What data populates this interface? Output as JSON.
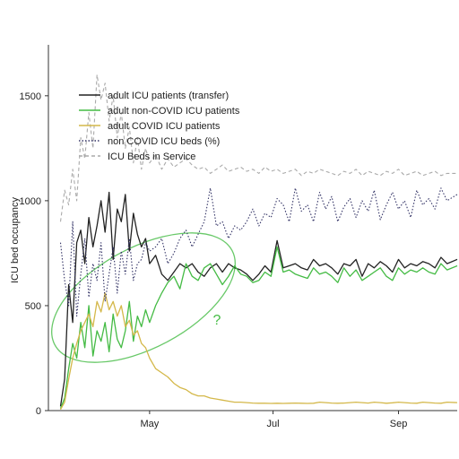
{
  "chart_data": {
    "type": "line",
    "title": "",
    "xlabel": "",
    "ylabel": "ICU bed occupancy",
    "xlim": [
      "2020-03-12",
      "2020-09-30"
    ],
    "ylim": [
      0,
      1700
    ],
    "y_ticks": [
      0,
      500,
      1000,
      1500
    ],
    "y_tick_labels": [
      "0",
      "500",
      "1000",
      "1500"
    ],
    "x_ticks": [
      "2020-05-01",
      "2020-07-01",
      "2020-09-01"
    ],
    "x_tick_labels": [
      "May",
      "Jul",
      "Sep"
    ],
    "legend_position": "top-left",
    "annotation": {
      "text": "?",
      "color": "#44bb44"
    },
    "series": [
      {
        "name": "adult ICU patients (transfer)",
        "color": "#222222",
        "style": "solid",
        "x": [
          "2020-03-18",
          "2020-03-20",
          "2020-03-22",
          "2020-03-24",
          "2020-03-26",
          "2020-03-28",
          "2020-03-30",
          "2020-04-01",
          "2020-04-03",
          "2020-04-05",
          "2020-04-07",
          "2020-04-09",
          "2020-04-11",
          "2020-04-13",
          "2020-04-15",
          "2020-04-17",
          "2020-04-19",
          "2020-04-21",
          "2020-04-23",
          "2020-04-25",
          "2020-04-27",
          "2020-04-29",
          "2020-05-01",
          "2020-05-04",
          "2020-05-07",
          "2020-05-10",
          "2020-05-13",
          "2020-05-16",
          "2020-05-19",
          "2020-05-22",
          "2020-05-25",
          "2020-05-28",
          "2020-05-31",
          "2020-06-03",
          "2020-06-06",
          "2020-06-09",
          "2020-06-12",
          "2020-06-15",
          "2020-06-18",
          "2020-06-21",
          "2020-06-24",
          "2020-06-27",
          "2020-06-30",
          "2020-07-03",
          "2020-07-06",
          "2020-07-09",
          "2020-07-12",
          "2020-07-15",
          "2020-07-18",
          "2020-07-21",
          "2020-07-24",
          "2020-07-27",
          "2020-07-30",
          "2020-08-02",
          "2020-08-05",
          "2020-08-08",
          "2020-08-11",
          "2020-08-14",
          "2020-08-17",
          "2020-08-20",
          "2020-08-23",
          "2020-08-26",
          "2020-08-29",
          "2020-09-01",
          "2020-09-04",
          "2020-09-07",
          "2020-09-10",
          "2020-09-13",
          "2020-09-16",
          "2020-09-19",
          "2020-09-22",
          "2020-09-25",
          "2020-09-30"
        ],
        "y": [
          20,
          150,
          600,
          420,
          800,
          860,
          700,
          920,
          780,
          880,
          1000,
          850,
          1040,
          720,
          960,
          900,
          1030,
          760,
          940,
          840,
          780,
          820,
          700,
          740,
          650,
          620,
          660,
          700,
          680,
          700,
          660,
          640,
          680,
          700,
          660,
          700,
          680,
          670,
          650,
          620,
          650,
          690,
          660,
          810,
          680,
          690,
          700,
          680,
          670,
          720,
          690,
          700,
          680,
          650,
          700,
          690,
          720,
          640,
          700,
          680,
          710,
          690,
          660,
          720,
          680,
          700,
          690,
          710,
          700,
          680,
          730,
          700,
          720
        ]
      },
      {
        "name": "adult non-COVID ICU patients",
        "color": "#44bb44",
        "style": "solid",
        "x": [
          "2020-03-18",
          "2020-03-20",
          "2020-03-22",
          "2020-03-24",
          "2020-03-26",
          "2020-03-28",
          "2020-03-30",
          "2020-04-01",
          "2020-04-03",
          "2020-04-05",
          "2020-04-07",
          "2020-04-09",
          "2020-04-11",
          "2020-04-13",
          "2020-04-15",
          "2020-04-17",
          "2020-04-19",
          "2020-04-21",
          "2020-04-23",
          "2020-04-25",
          "2020-04-27",
          "2020-04-29",
          "2020-05-01",
          "2020-05-04",
          "2020-05-07",
          "2020-05-10",
          "2020-05-13",
          "2020-05-16",
          "2020-05-19",
          "2020-05-22",
          "2020-05-25",
          "2020-05-28",
          "2020-05-31",
          "2020-06-03",
          "2020-06-06",
          "2020-06-09",
          "2020-06-12",
          "2020-06-15",
          "2020-06-18",
          "2020-06-21",
          "2020-06-24",
          "2020-06-27",
          "2020-06-30",
          "2020-07-03",
          "2020-07-06",
          "2020-07-09",
          "2020-07-12",
          "2020-07-15",
          "2020-07-18",
          "2020-07-21",
          "2020-07-24",
          "2020-07-27",
          "2020-07-30",
          "2020-08-02",
          "2020-08-05",
          "2020-08-08",
          "2020-08-11",
          "2020-08-14",
          "2020-08-17",
          "2020-08-20",
          "2020-08-23",
          "2020-08-26",
          "2020-08-29",
          "2020-09-01",
          "2020-09-04",
          "2020-09-07",
          "2020-09-10",
          "2020-09-13",
          "2020-09-16",
          "2020-09-19",
          "2020-09-22",
          "2020-09-25",
          "2020-09-30"
        ],
        "y": [
          10,
          60,
          200,
          320,
          250,
          420,
          300,
          500,
          260,
          380,
          330,
          420,
          280,
          460,
          340,
          300,
          380,
          520,
          330,
          450,
          400,
          480,
          420,
          500,
          560,
          610,
          640,
          580,
          700,
          640,
          620,
          680,
          700,
          650,
          600,
          640,
          690,
          650,
          640,
          610,
          620,
          660,
          640,
          780,
          660,
          670,
          650,
          640,
          630,
          680,
          650,
          660,
          640,
          610,
          680,
          640,
          670,
          620,
          640,
          660,
          680,
          640,
          620,
          680,
          650,
          670,
          660,
          680,
          660,
          650,
          700,
          670,
          690
        ]
      },
      {
        "name": "adult COVID ICU patients",
        "color": "#d4b84a",
        "style": "solid",
        "x": [
          "2020-03-18",
          "2020-03-20",
          "2020-03-22",
          "2020-03-24",
          "2020-03-26",
          "2020-03-28",
          "2020-03-30",
          "2020-04-01",
          "2020-04-03",
          "2020-04-05",
          "2020-04-07",
          "2020-04-09",
          "2020-04-11",
          "2020-04-13",
          "2020-04-15",
          "2020-04-17",
          "2020-04-19",
          "2020-04-21",
          "2020-04-23",
          "2020-04-25",
          "2020-04-27",
          "2020-04-29",
          "2020-05-01",
          "2020-05-04",
          "2020-05-07",
          "2020-05-10",
          "2020-05-13",
          "2020-05-16",
          "2020-05-19",
          "2020-05-22",
          "2020-05-25",
          "2020-05-28",
          "2020-05-31",
          "2020-06-03",
          "2020-06-06",
          "2020-06-09",
          "2020-06-12",
          "2020-06-15",
          "2020-06-18",
          "2020-06-21",
          "2020-06-24",
          "2020-06-27",
          "2020-06-30",
          "2020-07-03",
          "2020-07-06",
          "2020-07-09",
          "2020-07-12",
          "2020-07-15",
          "2020-07-18",
          "2020-07-21",
          "2020-07-24",
          "2020-07-27",
          "2020-07-30",
          "2020-08-02",
          "2020-08-05",
          "2020-08-08",
          "2020-08-11",
          "2020-08-14",
          "2020-08-17",
          "2020-08-20",
          "2020-08-23",
          "2020-08-26",
          "2020-08-29",
          "2020-09-01",
          "2020-09-04",
          "2020-09-07",
          "2020-09-10",
          "2020-09-13",
          "2020-09-16",
          "2020-09-19",
          "2020-09-22",
          "2020-09-25",
          "2020-09-30"
        ],
        "y": [
          5,
          40,
          150,
          250,
          320,
          380,
          420,
          460,
          400,
          520,
          470,
          560,
          480,
          520,
          450,
          500,
          400,
          430,
          360,
          380,
          320,
          300,
          250,
          200,
          180,
          160,
          130,
          110,
          100,
          80,
          70,
          70,
          60,
          55,
          50,
          45,
          40,
          40,
          38,
          36,
          35,
          35,
          34,
          35,
          34,
          35,
          36,
          35,
          34,
          35,
          40,
          38,
          36,
          35,
          36,
          38,
          40,
          38,
          36,
          40,
          38,
          35,
          37,
          40,
          38,
          36,
          35,
          40,
          38,
          36,
          35,
          40,
          38
        ]
      },
      {
        "name": "non COVID ICU beds (%)",
        "color": "#333366",
        "style": "dotted",
        "x": [
          "2020-03-18",
          "2020-03-20",
          "2020-03-22",
          "2020-03-24",
          "2020-03-26",
          "2020-03-28",
          "2020-03-30",
          "2020-04-01",
          "2020-04-03",
          "2020-04-05",
          "2020-04-07",
          "2020-04-09",
          "2020-04-11",
          "2020-04-13",
          "2020-04-15",
          "2020-04-17",
          "2020-04-19",
          "2020-04-21",
          "2020-04-23",
          "2020-04-25",
          "2020-04-27",
          "2020-04-29",
          "2020-05-01",
          "2020-05-04",
          "2020-05-07",
          "2020-05-10",
          "2020-05-13",
          "2020-05-16",
          "2020-05-19",
          "2020-05-22",
          "2020-05-25",
          "2020-05-28",
          "2020-05-31",
          "2020-06-03",
          "2020-06-06",
          "2020-06-09",
          "2020-06-12",
          "2020-06-15",
          "2020-06-18",
          "2020-06-21",
          "2020-06-24",
          "2020-06-27",
          "2020-06-30",
          "2020-07-03",
          "2020-07-06",
          "2020-07-09",
          "2020-07-12",
          "2020-07-15",
          "2020-07-18",
          "2020-07-21",
          "2020-07-24",
          "2020-07-27",
          "2020-07-30",
          "2020-08-02",
          "2020-08-05",
          "2020-08-08",
          "2020-08-11",
          "2020-08-14",
          "2020-08-17",
          "2020-08-20",
          "2020-08-23",
          "2020-08-26",
          "2020-08-29",
          "2020-09-01",
          "2020-09-04",
          "2020-09-07",
          "2020-09-10",
          "2020-09-13",
          "2020-09-16",
          "2020-09-19",
          "2020-09-22",
          "2020-09-25",
          "2020-09-30"
        ],
        "y": [
          800,
          620,
          500,
          900,
          450,
          650,
          820,
          540,
          700,
          620,
          800,
          520,
          650,
          780,
          560,
          760,
          650,
          820,
          620,
          700,
          720,
          800,
          760,
          780,
          820,
          700,
          750,
          820,
          860,
          780,
          840,
          900,
          1060,
          880,
          900,
          820,
          880,
          860,
          900,
          960,
          880,
          940,
          920,
          1010,
          980,
          900,
          1060,
          950,
          980,
          900,
          1040,
          960,
          1020,
          900,
          970,
          1010,
          920,
          1000,
          950,
          1050,
          910,
          980,
          1040,
          960,
          1000,
          920,
          1050,
          980,
          1010,
          960,
          1060,
          1000,
          1030
        ]
      },
      {
        "name": "ICU Beds in Service",
        "color": "#aaaaaa",
        "style": "dashed",
        "x": [
          "2020-03-18",
          "2020-03-20",
          "2020-03-22",
          "2020-03-24",
          "2020-03-26",
          "2020-03-28",
          "2020-03-30",
          "2020-04-01",
          "2020-04-03",
          "2020-04-05",
          "2020-04-07",
          "2020-04-09",
          "2020-04-11",
          "2020-04-13",
          "2020-04-15",
          "2020-04-17",
          "2020-04-19",
          "2020-04-21",
          "2020-04-23",
          "2020-04-25",
          "2020-04-27",
          "2020-04-29",
          "2020-05-01",
          "2020-05-04",
          "2020-05-07",
          "2020-05-10",
          "2020-05-13",
          "2020-05-16",
          "2020-05-19",
          "2020-05-22",
          "2020-05-25",
          "2020-05-28",
          "2020-05-31",
          "2020-06-03",
          "2020-06-06",
          "2020-06-09",
          "2020-06-12",
          "2020-06-15",
          "2020-06-18",
          "2020-06-21",
          "2020-06-24",
          "2020-06-27",
          "2020-06-30",
          "2020-07-03",
          "2020-07-06",
          "2020-07-09",
          "2020-07-12",
          "2020-07-15",
          "2020-07-18",
          "2020-07-21",
          "2020-07-24",
          "2020-07-27",
          "2020-07-30",
          "2020-08-02",
          "2020-08-05",
          "2020-08-08",
          "2020-08-11",
          "2020-08-14",
          "2020-08-17",
          "2020-08-20",
          "2020-08-23",
          "2020-08-26",
          "2020-08-29",
          "2020-09-01",
          "2020-09-04",
          "2020-09-07",
          "2020-09-10",
          "2020-09-13",
          "2020-09-16",
          "2020-09-19",
          "2020-09-22",
          "2020-09-25",
          "2020-09-30"
        ],
        "y": [
          900,
          1050,
          980,
          1150,
          1000,
          1300,
          1200,
          1420,
          1250,
          1600,
          1480,
          1560,
          1380,
          1500,
          1300,
          1420,
          1250,
          1350,
          1180,
          1300,
          1150,
          1250,
          1180,
          1220,
          1150,
          1200,
          1160,
          1180,
          1200,
          1170,
          1150,
          1160,
          1130,
          1150,
          1170,
          1140,
          1150,
          1160,
          1140,
          1150,
          1130,
          1160,
          1140,
          1150,
          1130,
          1140,
          1150,
          1120,
          1140,
          1130,
          1150,
          1140,
          1130,
          1120,
          1140,
          1130,
          1150,
          1120,
          1140,
          1130,
          1120,
          1140,
          1130,
          1150,
          1120,
          1130,
          1140,
          1120,
          1130,
          1140,
          1120,
          1130,
          1130
        ]
      }
    ]
  }
}
